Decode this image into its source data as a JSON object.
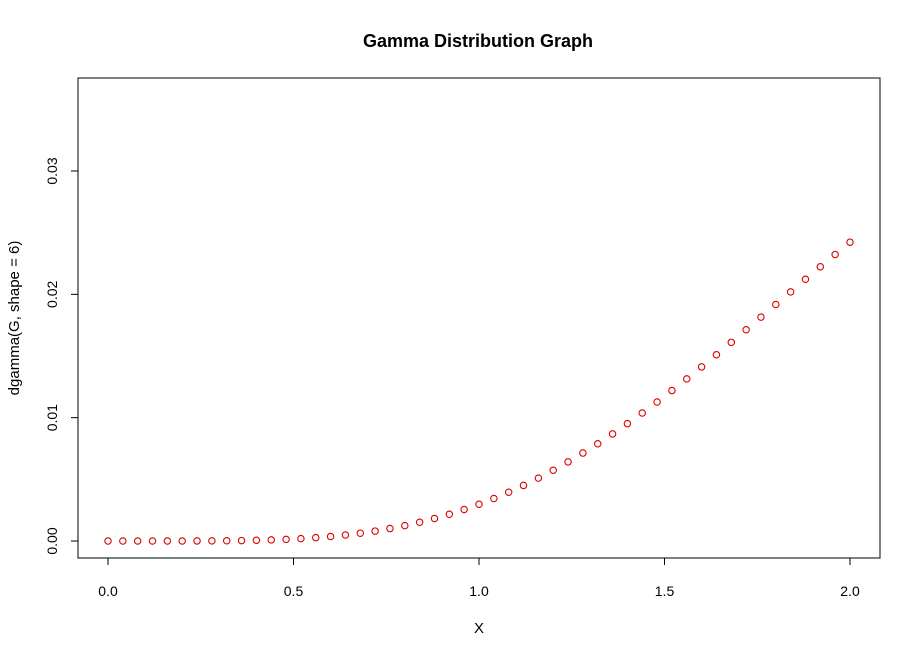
{
  "chart_data": {
    "type": "scatter",
    "title": "Gamma Distribution Graph",
    "xlabel": "X",
    "ylabel": "dgamma(G, shape = 6)",
    "xlim": [
      0,
      2
    ],
    "ylim": [
      0,
      0.036
    ],
    "x_ticks": [
      0.0,
      0.5,
      1.0,
      1.5,
      2.0
    ],
    "x_tick_labels": [
      "0.0",
      "0.5",
      "1.0",
      "1.5",
      "2.0"
    ],
    "y_ticks": [
      0.0,
      0.01,
      0.02,
      0.03
    ],
    "y_tick_labels": [
      "0.00",
      "0.01",
      "0.02",
      "0.03"
    ],
    "grid": false,
    "marker": "open-circle",
    "colors": {
      "points": "#dd0000",
      "axes": "#000000"
    },
    "series": [
      {
        "x": [
          0.0,
          0.04,
          0.08,
          0.12,
          0.16,
          0.2,
          0.24,
          0.28,
          0.32,
          0.36,
          0.4,
          0.44,
          0.48,
          0.52,
          0.56,
          0.6,
          0.64,
          0.68,
          0.72,
          0.76,
          0.8,
          0.84,
          0.88,
          0.92,
          0.96,
          1.0,
          1.04,
          1.08,
          1.12,
          1.16,
          1.2,
          1.24,
          1.28,
          1.32,
          1.36,
          1.4,
          1.44,
          1.48,
          1.52,
          1.56,
          1.6,
          1.64,
          1.68,
          1.72,
          1.76,
          1.8,
          1.84,
          1.88,
          1.92,
          1.96,
          2.0
        ],
        "y": [
          0.0,
          0.0,
          0.0,
          2e-07,
          9e-07,
          2.2e-06,
          5.4e-06,
          1.09e-05,
          2.02e-05,
          3.51e-05,
          5.75e-05,
          8.97e-05,
          0.0001339,
          0.0001929,
          0.0002696,
          0.0003663,
          0.000486,
          0.0006315,
          0.0008054,
          0.0010097,
          0.0012465,
          0.0015175,
          0.0018251,
          0.002171,
          0.0025561,
          0.00298,
          0.0034462,
          0.0039549,
          0.0045054,
          0.0050987,
          0.005735,
          0.0064125,
          0.0071303,
          0.007886,
          0.008681,
          0.009512,
          0.010376,
          0.011272,
          0.012198,
          0.013147,
          0.014115,
          0.015104,
          0.016109,
          0.017126,
          0.01815,
          0.019177,
          0.020201,
          0.021221,
          0.022233,
          0.023234,
          0.024228
        ]
      }
    ]
  }
}
